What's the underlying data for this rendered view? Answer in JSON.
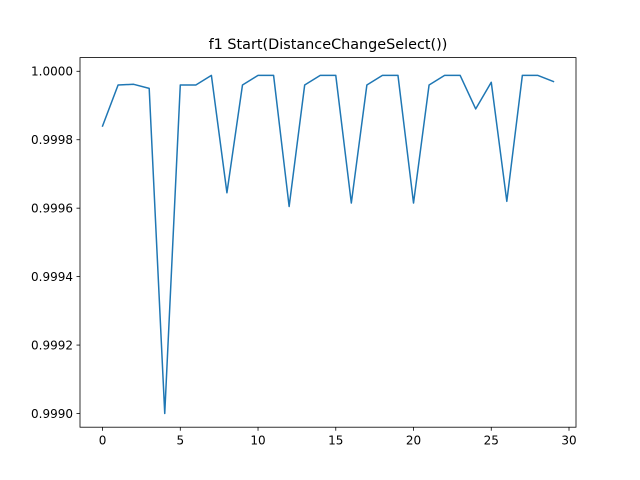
{
  "chart_data": {
    "type": "line",
    "title": "f1 Start(DistanceChangeSelect())",
    "xlabel": "",
    "ylabel": "",
    "xlim": [
      -1.45,
      30.45
    ],
    "ylim": [
      0.99896,
      1.00004
    ],
    "x_ticks": [
      0,
      5,
      10,
      15,
      20,
      25,
      30
    ],
    "x_tick_labels": [
      "0",
      "5",
      "10",
      "15",
      "20",
      "25",
      "30"
    ],
    "y_ticks": [
      0.999,
      0.9992,
      0.9994,
      0.9996,
      0.9998,
      1.0
    ],
    "y_tick_labels": [
      "0.9990",
      "0.9992",
      "0.9994",
      "0.9996",
      "0.9998",
      "1.0000"
    ],
    "grid": false,
    "legend": "none",
    "series": [
      {
        "color": "#1f77b4",
        "x": [
          0,
          1,
          2,
          3,
          4,
          5,
          6,
          7,
          8,
          9,
          10,
          11,
          12,
          13,
          14,
          15,
          16,
          17,
          18,
          19,
          20,
          21,
          22,
          23,
          24,
          25,
          26,
          27,
          28,
          29
        ],
        "y": [
          0.99984,
          0.99996,
          0.999962,
          0.99995,
          0.999,
          0.99996,
          0.99996,
          0.999988,
          0.999645,
          0.99996,
          0.999988,
          0.999988,
          0.999605,
          0.99996,
          0.999988,
          0.999988,
          0.999615,
          0.99996,
          0.999988,
          0.999988,
          0.999615,
          0.99996,
          0.999988,
          0.999988,
          0.99989,
          0.999968,
          0.99962,
          0.999988,
          0.999988,
          0.99997
        ]
      }
    ]
  }
}
